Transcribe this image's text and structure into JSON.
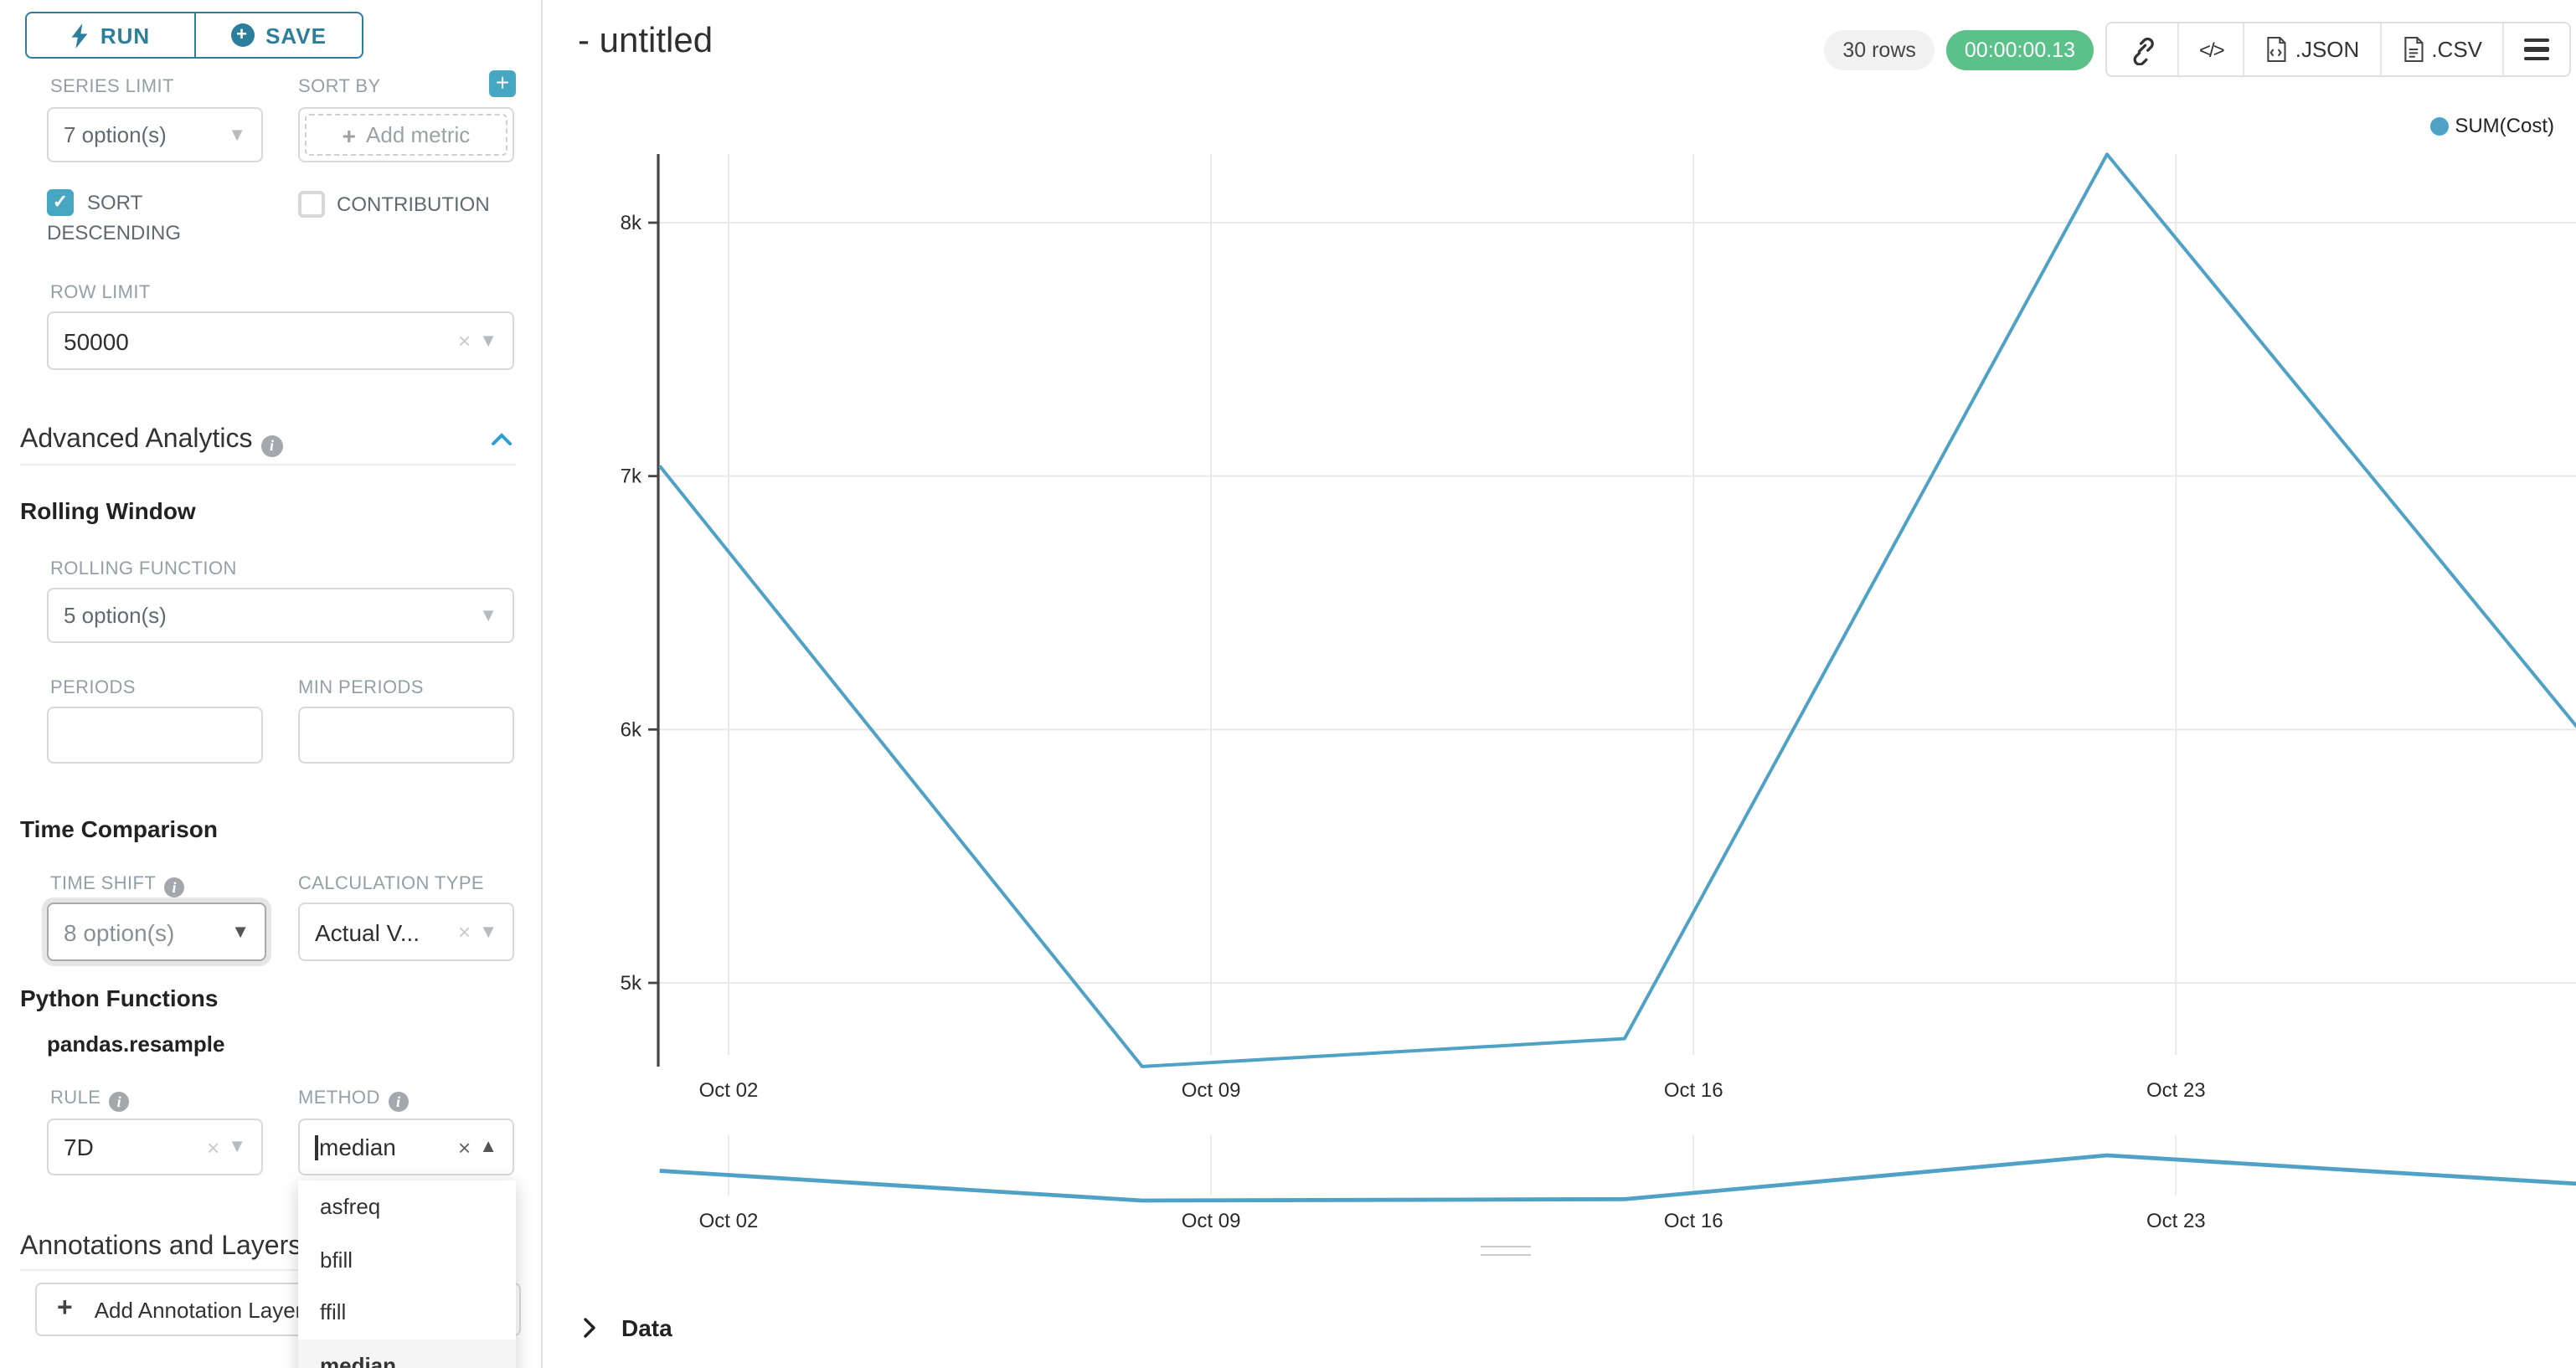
{
  "colors": {
    "button_teal": "#2b7e9c",
    "accent_teal": "#47a7c3",
    "line_blue": "#4fa2c6",
    "timer_green": "#5ac189",
    "chevron_blue": "#2f9ed4"
  },
  "sidebar": {
    "run_label": "RUN",
    "save_label": "SAVE",
    "series_limit_label": "SERIES LIMIT",
    "series_limit_value": "7 option(s)",
    "sort_by_label": "SORT BY",
    "add_metric_label": "Add metric",
    "sort_descending_label": "SORT DESCENDING",
    "contribution_label": "CONTRIBUTION",
    "row_limit_label": "ROW LIMIT",
    "row_limit_value": "50000",
    "advanced_analytics_title": "Advanced Analytics",
    "rolling_window_title": "Rolling Window",
    "rolling_function_label": "ROLLING FUNCTION",
    "rolling_function_value": "5 option(s)",
    "periods_label": "PERIODS",
    "min_periods_label": "MIN PERIODS",
    "time_comparison_title": "Time Comparison",
    "time_shift_label": "TIME SHIFT",
    "time_shift_value": "8 option(s)",
    "calculation_type_label": "CALCULATION TYPE",
    "calculation_type_value": "Actual V...",
    "python_functions_title": "Python Functions",
    "pandas_resample_label": "pandas.resample",
    "rule_label": "RULE",
    "rule_value": "7D",
    "method_label": "METHOD",
    "method_value": "median",
    "method_options": [
      "asfreq",
      "bfill",
      "ffill",
      "median"
    ],
    "method_selected": "median",
    "annotations_title": "Annotations and Layers",
    "add_annotation_label": "Add Annotation Layer"
  },
  "header": {
    "title": "- untitled",
    "rows_badge": "30 rows",
    "timer_badge": "00:00:00.13",
    "json_label": ".JSON",
    "csv_label": ".CSV"
  },
  "data_panel": {
    "label": "Data"
  },
  "chart_data": {
    "type": "line",
    "title": "- untitled",
    "legend_position": "top-right",
    "grid": true,
    "series": [
      {
        "name": "SUM(Cost)",
        "color": "#4fa2c6",
        "x": [
          "Oct 01",
          "Oct 08",
          "Oct 15",
          "Oct 22",
          "Oct 29"
        ],
        "values": [
          7040,
          4670,
          4780,
          8270,
          5950
        ]
      }
    ],
    "x_day_offsets": [
      0,
      7,
      14,
      21,
      28
    ],
    "x_tick_labels": [
      "Oct 02",
      "Oct 09",
      "Oct 16",
      "Oct 23"
    ],
    "x_tick_day_offsets": [
      1,
      8,
      15,
      22
    ],
    "y_tick_labels": [
      "8k",
      "7k",
      "6k",
      "5k"
    ],
    "y_ticks": [
      8000,
      7000,
      6000,
      5000
    ],
    "ylim_visible": [
      4650,
      8350
    ],
    "mini_preview_x_tick_labels": [
      "Oct 02",
      "Oct 09",
      "Oct 16",
      "Oct 23"
    ]
  }
}
